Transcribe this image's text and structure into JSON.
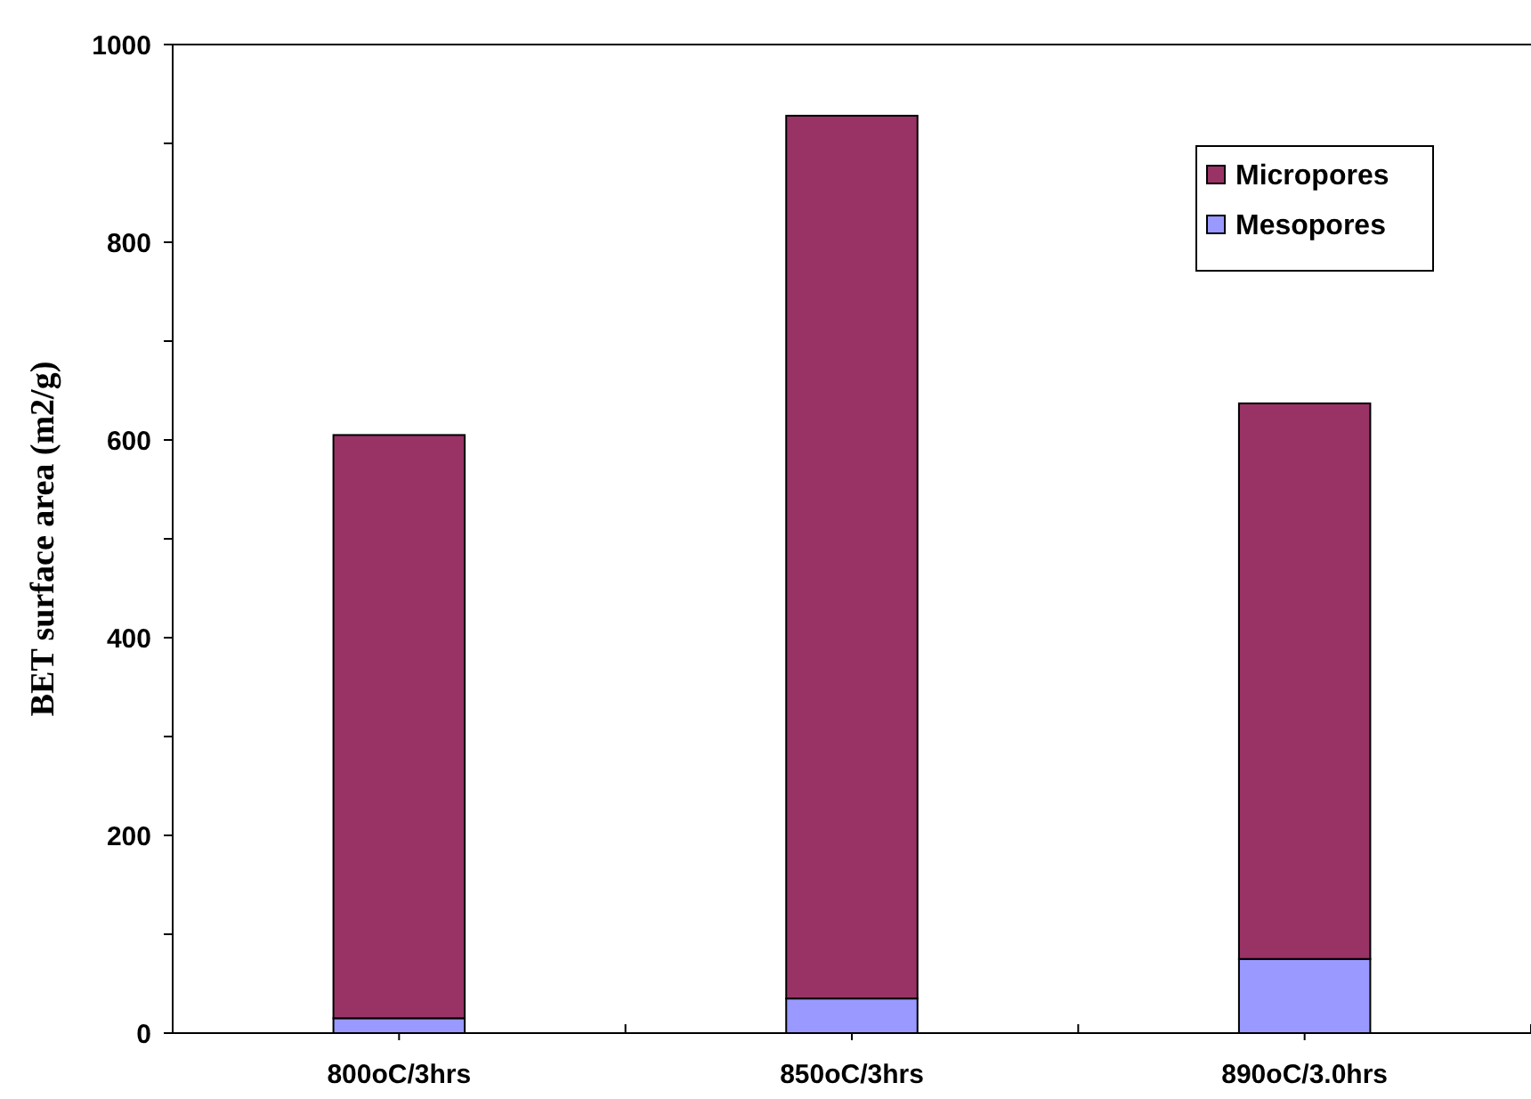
{
  "chart_data": {
    "type": "bar",
    "stacked": true,
    "ylabel": "BET surface area (m2/g)",
    "categories": [
      "800oC/3hrs",
      "850oC/3hrs",
      "890oC/3.0hrs"
    ],
    "series": [
      {
        "name": "Mesopores",
        "color": "#9999ff",
        "values": [
          15,
          35,
          75
        ]
      },
      {
        "name": "Micropores",
        "color": "#993366",
        "values": [
          590,
          893,
          562
        ]
      }
    ],
    "ylim": [
      0,
      1000
    ],
    "yticks": [
      0,
      {
        "value": 100,
        "label": null
      },
      200,
      {
        "value": 300,
        "label": null
      },
      400,
      {
        "value": 500,
        "label": null
      },
      600,
      {
        "value": 700,
        "label": null
      },
      800,
      {
        "value": 900,
        "label": null
      },
      1000
    ],
    "grid": false,
    "legend": "top right"
  }
}
